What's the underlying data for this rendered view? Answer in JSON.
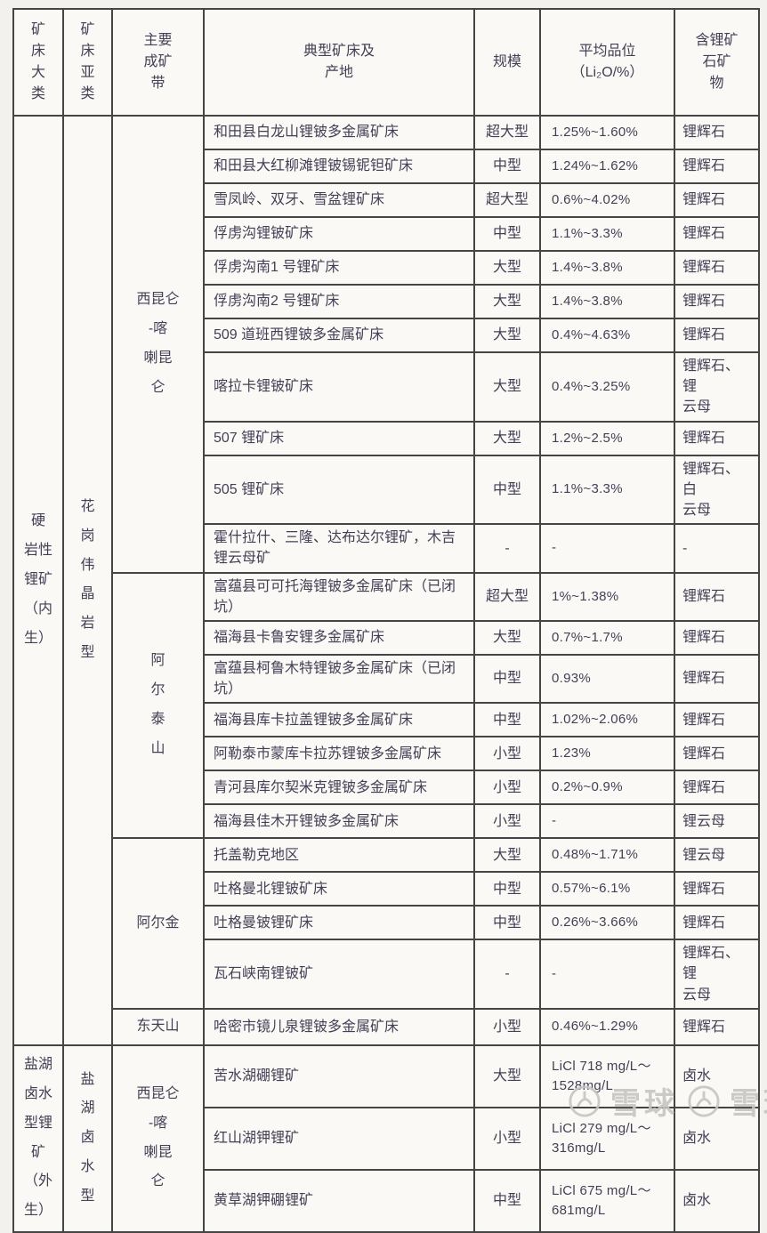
{
  "header": {
    "cols": [
      "矿\n床\n大\n类",
      "矿\n床\n亚\n类",
      "主要\n成矿\n带",
      "典型矿床及\n产地",
      "规模",
      "平均品位（Li₂O/%）",
      "含锂矿\n石矿\n物"
    ]
  },
  "sections": [
    {
      "category": "硬岩性锂矿（内生）",
      "category_display": "硬\n岩性\n锂矿\n（内\n生）",
      "subcategory": "花岗伟晶岩型",
      "subcategory_display": "花\n岗\n伟\n晶\n岩\n型",
      "belts": [
        {
          "name": "西昆仑-喀喇昆仑",
          "display": "西昆仑\n-喀\n喇昆\n仑",
          "rows": [
            {
              "deposit": "和田县白龙山锂铍多金属矿床",
              "scale": "超大型",
              "grade": "1.25%~1.60%",
              "mineral": "锂辉石"
            },
            {
              "deposit": "和田县大红柳滩锂铍锡铌钽矿床",
              "scale": "中型",
              "grade": "1.24%~1.62%",
              "mineral": "锂辉石"
            },
            {
              "deposit": "雪凤岭、双牙、雪盆锂矿床",
              "scale": "超大型",
              "grade": "0.6%~4.02%",
              "mineral": "锂辉石"
            },
            {
              "deposit": "俘虏沟锂铍矿床",
              "scale": "中型",
              "grade": "1.1%~3.3%",
              "mineral": "锂辉石"
            },
            {
              "deposit": "俘虏沟南1 号锂矿床",
              "scale": "大型",
              "grade": "1.4%~3.8%",
              "mineral": "锂辉石"
            },
            {
              "deposit": "俘虏沟南2 号锂矿床",
              "scale": "大型",
              "grade": "1.4%~3.8%",
              "mineral": "锂辉石"
            },
            {
              "deposit": "509 道班西锂铍多金属矿床",
              "scale": "大型",
              "grade": "0.4%~4.63%",
              "mineral": "锂辉石"
            },
            {
              "deposit": "喀拉卡锂铍矿床",
              "scale": "大型",
              "grade": "0.4%~3.25%",
              "mineral": "锂辉石、锂\n云母"
            },
            {
              "deposit": "507 锂矿床",
              "scale": "大型",
              "grade": "1.2%~2.5%",
              "mineral": "锂辉石"
            },
            {
              "deposit": "505 锂矿床",
              "scale": "中型",
              "grade": "1.1%~3.3%",
              "mineral": "锂辉石、白\n云母"
            },
            {
              "deposit": "霍什拉什、三隆、达布达尔锂矿，木吉锂云母矿",
              "scale": "-",
              "grade": "-",
              "mineral": "-"
            }
          ]
        },
        {
          "name": "阿尔泰山",
          "display": "阿\n尔\n泰\n山",
          "rows": [
            {
              "deposit": "富蕴县可可托海锂铍多金属矿床（已闭坑）",
              "scale": "超大型",
              "grade": "1%~1.38%",
              "mineral": "锂辉石"
            },
            {
              "deposit": "福海县卡鲁安锂多金属矿床",
              "scale": "大型",
              "grade": "0.7%~1.7%",
              "mineral": "锂辉石"
            },
            {
              "deposit": "富蕴县柯鲁木特锂铍多金属矿床（已闭坑）",
              "scale": "中型",
              "grade": "0.93%",
              "mineral": "锂辉石"
            },
            {
              "deposit": "福海县库卡拉盖锂铍多金属矿床",
              "scale": "中型",
              "grade": "1.02%~2.06%",
              "mineral": "锂辉石"
            },
            {
              "deposit": "阿勒泰市蒙库卡拉苏锂铍多金属矿床",
              "scale": "小型",
              "grade": "1.23%",
              "mineral": "锂辉石"
            },
            {
              "deposit": "青河县库尔契米克锂铍多金属矿床",
              "scale": "小型",
              "grade": "0.2%~0.9%",
              "mineral": "锂辉石"
            },
            {
              "deposit": "福海县佳木开锂铍多金属矿床",
              "scale": "小型",
              "grade": "-",
              "mineral": "锂云母"
            }
          ]
        },
        {
          "name": "阿尔金",
          "display": "阿尔金",
          "rows": [
            {
              "deposit": "托盖勒克地区",
              "scale": "大型",
              "grade": "0.48%~1.71%",
              "mineral": "锂云母"
            },
            {
              "deposit": "吐格曼北锂铍矿床",
              "scale": "中型",
              "grade": "0.57%~6.1%",
              "mineral": "锂辉石"
            },
            {
              "deposit": "吐格曼铍锂矿床",
              "scale": "中型",
              "grade": "0.26%~3.66%",
              "mineral": "锂辉石"
            },
            {
              "deposit": "瓦石峡南锂铍矿",
              "scale": "-",
              "grade": "-",
              "mineral": "锂辉石、锂\n云母"
            }
          ]
        },
        {
          "name": "东天山",
          "display": "东天山",
          "rows": [
            {
              "deposit": "哈密市镜儿泉锂铍多金属矿床",
              "scale": "小型",
              "grade": "0.46%~1.29%",
              "mineral": "锂辉石"
            }
          ]
        }
      ]
    },
    {
      "category": "盐湖卤水型锂矿（外生）",
      "category_display": "盐湖\n卤水\n型锂\n矿（外\n生）",
      "subcategory": "盐湖卤水型",
      "subcategory_display": "盐\n湖\n卤\n水\n型",
      "belts": [
        {
          "name": "西昆仑-喀喇昆仑",
          "display": "西昆仑\n-喀\n喇昆\n仑",
          "rows": [
            {
              "deposit": "苦水湖硼锂矿",
              "scale": "大型",
              "grade": "LiCl 718 mg/L～\n1528mg/L",
              "mineral": "卤水"
            },
            {
              "deposit": "红山湖钾锂矿",
              "scale": "小型",
              "grade": "LiCl 279 mg/L～\n316mg/L",
              "mineral": "卤水"
            },
            {
              "deposit": "黄草湖钾硼锂矿",
              "scale": "中型",
              "grade": "LiCl 675 mg/L～\n681mg/L",
              "mineral": "卤水"
            }
          ]
        }
      ]
    }
  ],
  "watermark": {
    "brand1": "雪球",
    "brand2": "雪球"
  }
}
